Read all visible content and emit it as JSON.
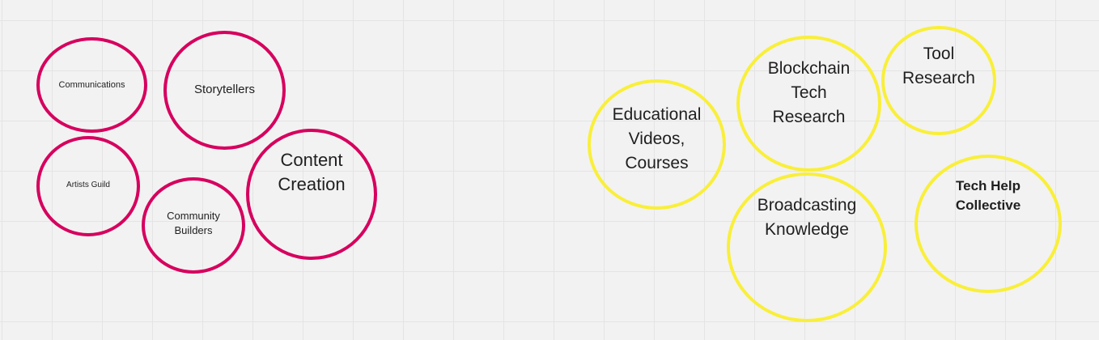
{
  "colors": {
    "pink_group": "#d6005e",
    "yellow_group": "#f9ef3a",
    "background": "#f2f2f2",
    "grid": "#e4e4e4"
  },
  "bubbles": {
    "communications": "Communications",
    "storytellers": "Storytellers",
    "artists_guild": "Artists Guild",
    "community_builders": "Community\nBuilders",
    "content_creation": "Content\nCreation",
    "educational_videos": "Educational\nVideos,\nCourses",
    "blockchain_tech": "Blockchain\nTech\nResearch",
    "tool_research": "Tool\nResearch",
    "broadcasting_knowledge": "Broadcasting\nKnowledge",
    "tech_help": "Tech Help\nCollective"
  }
}
